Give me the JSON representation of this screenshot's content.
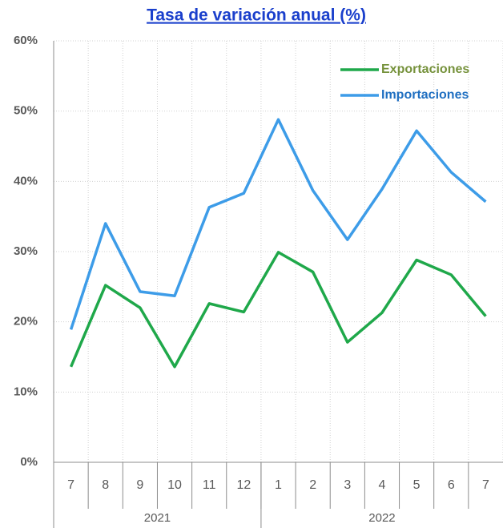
{
  "chart_data": {
    "type": "line",
    "title": "Tasa de variación anual (%)",
    "categories": [
      "7",
      "8",
      "9",
      "10",
      "11",
      "12",
      "1",
      "2",
      "3",
      "4",
      "5",
      "6",
      "7"
    ],
    "groups": [
      {
        "label": "2021",
        "count": 6
      },
      {
        "label": "2022",
        "count": 7
      }
    ],
    "series": [
      {
        "name": "Exportaciones",
        "color": "#1fa84a",
        "label_color": "#76923c",
        "values": [
          13.6,
          25.2,
          22.0,
          13.6,
          22.6,
          21.4,
          29.9,
          27.1,
          17.1,
          21.3,
          28.8,
          26.7,
          20.8
        ]
      },
      {
        "name": "Importaciones",
        "color": "#3d9ce8",
        "label_color": "#1f6fc1",
        "values": [
          18.9,
          34.0,
          24.3,
          23.7,
          36.3,
          38.3,
          48.8,
          38.7,
          31.7,
          38.9,
          47.2,
          41.3,
          37.1
        ]
      }
    ],
    "ylim": [
      0,
      60
    ],
    "yticks": [
      {
        "value": 0,
        "label": "0%"
      },
      {
        "value": 10,
        "label": "10%"
      },
      {
        "value": 20,
        "label": "20%"
      },
      {
        "value": 30,
        "label": "30%"
      },
      {
        "value": 40,
        "label": "40%"
      },
      {
        "value": 50,
        "label": "50%"
      },
      {
        "value": 60,
        "label": "60%"
      }
    ],
    "grid": true,
    "legend": "upper right"
  }
}
